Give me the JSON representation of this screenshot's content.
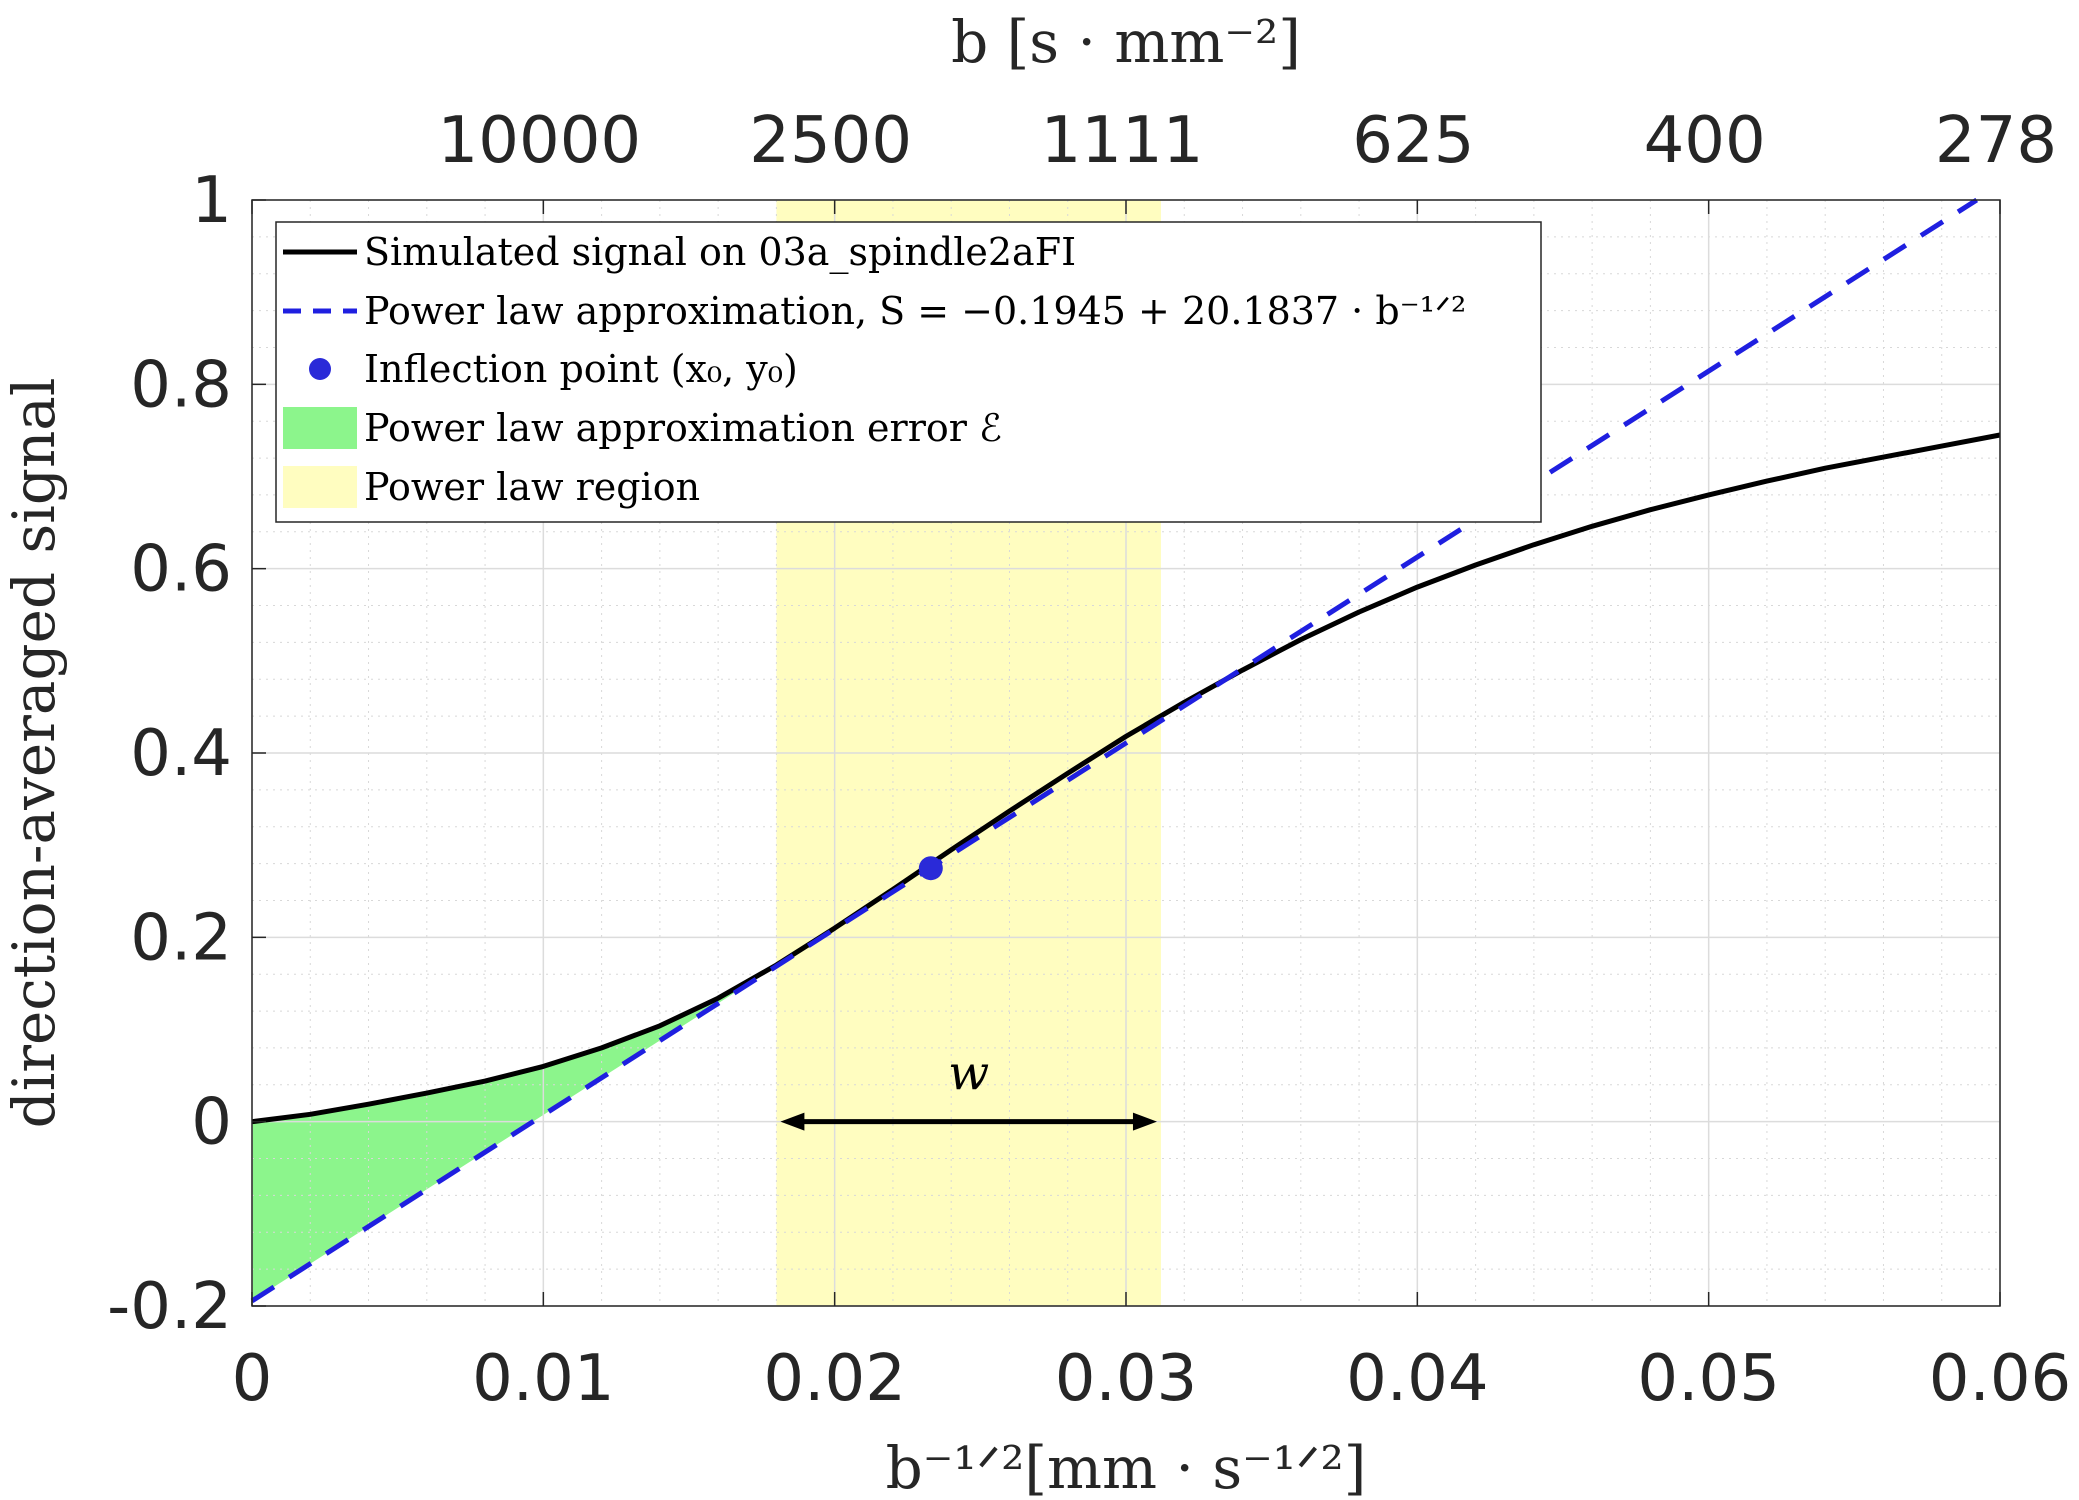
{
  "chart_data": {
    "type": "line",
    "xlabel": "b⁻¹ᐟ²[mm · s⁻¹ᐟ²]",
    "ylabel": "direction-averaged signal",
    "top_xlabel": "b [s · mm⁻²]",
    "xlim": [
      0,
      0.06
    ],
    "ylim": [
      -0.2,
      1
    ],
    "xticks": [
      0,
      0.01,
      0.02,
      0.03,
      0.04,
      0.05,
      0.06
    ],
    "xtick_labels": [
      "0",
      "0.01",
      "0.02",
      "0.03",
      "0.04",
      "0.05",
      "0.06"
    ],
    "yticks": [
      -0.2,
      0,
      0.2,
      0.4,
      0.6,
      0.8,
      1
    ],
    "ytick_labels": [
      "-0.2",
      "0",
      "0.2",
      "0.4",
      "0.6",
      "0.8",
      "1"
    ],
    "top_xtick_labels": [
      "10000",
      "2500",
      "1111",
      "625",
      "400",
      "278"
    ],
    "grid": true,
    "legend_position": "top-left",
    "series": [
      {
        "name": "Simulated signal on 03a_spindle2aFI",
        "style": "solid",
        "color": "#000000",
        "x": [
          0,
          0.002,
          0.004,
          0.006,
          0.008,
          0.01,
          0.012,
          0.014,
          0.016,
          0.018,
          0.02,
          0.022,
          0.024,
          0.026,
          0.028,
          0.03,
          0.032,
          0.034,
          0.036,
          0.038,
          0.04,
          0.042,
          0.044,
          0.046,
          0.048,
          0.05,
          0.052,
          0.054,
          0.056,
          0.058,
          0.06
        ],
        "y": [
          0.0,
          0.008,
          0.019,
          0.031,
          0.044,
          0.06,
          0.08,
          0.104,
          0.134,
          0.17,
          0.21,
          0.252,
          0.295,
          0.337,
          0.378,
          0.418,
          0.455,
          0.49,
          0.523,
          0.553,
          0.58,
          0.604,
          0.626,
          0.646,
          0.664,
          0.68,
          0.695,
          0.709,
          0.721,
          0.733,
          0.745
        ]
      },
      {
        "name": "Power law approximation, S = −0.1945 + 20.1837 · b⁻¹ᐟ²",
        "style": "dashed",
        "color": "#1f1fe0",
        "intercept": -0.1945,
        "slope": 20.1837,
        "x": [
          0,
          0.0592
        ],
        "y": [
          -0.1945,
          1.0
        ]
      }
    ],
    "inflection_point": {
      "name": "Inflection point (x₀, y₀)",
      "x": 0.0233,
      "y": 0.275,
      "color": "#2a2ad8"
    },
    "error_region": {
      "name": "Power law approximation error ℰ",
      "x_from": 0,
      "x_to": 0.018,
      "color": "#8cf58c"
    },
    "power_law_region": {
      "name": "Power law region",
      "x_from": 0.018,
      "x_to": 0.0312,
      "color": "#fffdc0"
    },
    "width_annotation": {
      "label": "w",
      "x_from": 0.018,
      "x_to": 0.0312,
      "y": 0.0
    }
  }
}
